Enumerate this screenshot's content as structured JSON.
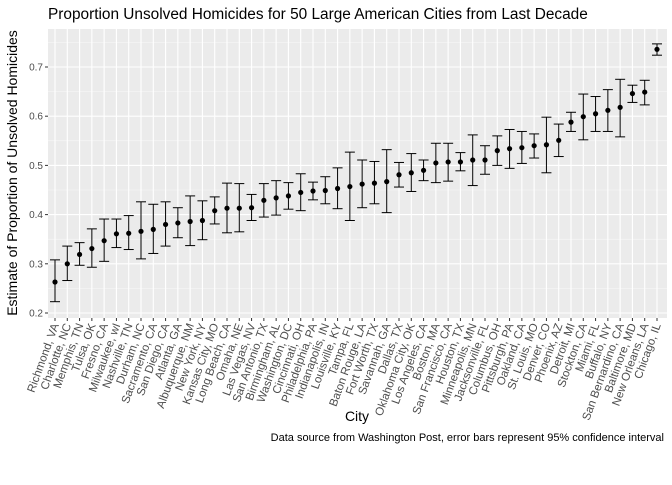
{
  "chart_data": {
    "type": "scatter",
    "title": "Proportion Unsolved Homicides for 50 Large American Cities from Last Decade",
    "xlabel": "City",
    "ylabel": "Estimate of Proportion of Unsolved Homicides",
    "caption": "Data source from Washington Post, error bars represent 95% confidence interval",
    "ylim": [
      0.2,
      0.75
    ],
    "yticks": [
      0.2,
      0.3,
      0.4,
      0.5,
      0.6,
      0.7
    ],
    "grid": true,
    "legend": "none",
    "colors": {
      "panel": "#ebebeb",
      "grid_major": "#ffffff",
      "point": "#000000",
      "text": "#4d4d4d"
    },
    "points": [
      {
        "city": "Richmond, VA",
        "estimate": 0.263,
        "low": 0.223,
        "high": 0.308
      },
      {
        "city": "Charlotte, NC",
        "estimate": 0.3,
        "low": 0.266,
        "high": 0.336
      },
      {
        "city": "Memphis, TN",
        "estimate": 0.319,
        "low": 0.297,
        "high": 0.343
      },
      {
        "city": "Tulsa, OK",
        "estimate": 0.331,
        "low": 0.293,
        "high": 0.371
      },
      {
        "city": "Fresno, CA",
        "estimate": 0.347,
        "low": 0.305,
        "high": 0.391
      },
      {
        "city": "Milwaukee, wI",
        "estimate": 0.361,
        "low": 0.333,
        "high": 0.391
      },
      {
        "city": "Nashville, TN",
        "estimate": 0.362,
        "low": 0.329,
        "high": 0.398
      },
      {
        "city": "Durham, NC",
        "estimate": 0.366,
        "low": 0.31,
        "high": 0.426
      },
      {
        "city": "Sacramento, CA",
        "estimate": 0.37,
        "low": 0.321,
        "high": 0.421
      },
      {
        "city": "San Diego, CA",
        "estimate": 0.38,
        "low": 0.336,
        "high": 0.426
      },
      {
        "city": "Atlanta, GA",
        "estimate": 0.383,
        "low": 0.353,
        "high": 0.414
      },
      {
        "city": "Albuquerque, NM",
        "estimate": 0.386,
        "low": 0.337,
        "high": 0.438
      },
      {
        "city": "New York, NY",
        "estimate": 0.388,
        "low": 0.349,
        "high": 0.428
      },
      {
        "city": "Kansas City, MO",
        "estimate": 0.408,
        "low": 0.381,
        "high": 0.436
      },
      {
        "city": "Long Beach, CA",
        "estimate": 0.413,
        "low": 0.363,
        "high": 0.464
      },
      {
        "city": "Omaha, NE",
        "estimate": 0.413,
        "low": 0.365,
        "high": 0.463
      },
      {
        "city": "Las Vegas, NV",
        "estimate": 0.414,
        "low": 0.388,
        "high": 0.441
      },
      {
        "city": "San Antonio, TX",
        "estimate": 0.429,
        "low": 0.395,
        "high": 0.463
      },
      {
        "city": "Birmingham, AL",
        "estimate": 0.434,
        "low": 0.399,
        "high": 0.469
      },
      {
        "city": "Washington, DC",
        "estimate": 0.438,
        "low": 0.411,
        "high": 0.465
      },
      {
        "city": "Cincinnati, OH",
        "estimate": 0.445,
        "low": 0.408,
        "high": 0.483
      },
      {
        "city": "Philadelphia, PA",
        "estimate": 0.448,
        "low": 0.43,
        "high": 0.466
      },
      {
        "city": "Indianapolis, IN",
        "estimate": 0.449,
        "low": 0.422,
        "high": 0.477
      },
      {
        "city": "Louisville, KY",
        "estimate": 0.453,
        "low": 0.412,
        "high": 0.495
      },
      {
        "city": "Tampa, FL",
        "estimate": 0.457,
        "low": 0.388,
        "high": 0.527
      },
      {
        "city": "Baton Rouge, LA",
        "estimate": 0.462,
        "low": 0.414,
        "high": 0.511
      },
      {
        "city": "Fort Worth, TX",
        "estimate": 0.464,
        "low": 0.422,
        "high": 0.508
      },
      {
        "city": "Savannah, GA",
        "estimate": 0.467,
        "low": 0.404,
        "high": 0.532
      },
      {
        "city": "Dallas, TX",
        "estimate": 0.481,
        "low": 0.456,
        "high": 0.506
      },
      {
        "city": "Oklahoma City, OK",
        "estimate": 0.485,
        "low": 0.447,
        "high": 0.524
      },
      {
        "city": "Los Angeles, CA",
        "estimate": 0.49,
        "low": 0.469,
        "high": 0.511
      },
      {
        "city": "Boston, MA",
        "estimate": 0.505,
        "low": 0.465,
        "high": 0.545
      },
      {
        "city": "San Francisco, CA",
        "estimate": 0.507,
        "low": 0.468,
        "high": 0.545
      },
      {
        "city": "Houston, TX",
        "estimate": 0.507,
        "low": 0.489,
        "high": 0.526
      },
      {
        "city": "Minneapolis, MN",
        "estimate": 0.511,
        "low": 0.459,
        "high": 0.562
      },
      {
        "city": "Jacksonville, FL",
        "estimate": 0.511,
        "low": 0.482,
        "high": 0.54
      },
      {
        "city": "Columbus, OH",
        "estimate": 0.53,
        "low": 0.5,
        "high": 0.56
      },
      {
        "city": "Pittsburgh, PA",
        "estimate": 0.534,
        "low": 0.494,
        "high": 0.573
      },
      {
        "city": "Oakland, CA",
        "estimate": 0.536,
        "low": 0.504,
        "high": 0.569
      },
      {
        "city": "St. Louis, MO",
        "estimate": 0.54,
        "low": 0.515,
        "high": 0.564
      },
      {
        "city": "Denver, CO",
        "estimate": 0.542,
        "low": 0.485,
        "high": 0.598
      },
      {
        "city": "Phoenix, AZ",
        "estimate": 0.551,
        "low": 0.518,
        "high": 0.584
      },
      {
        "city": "Detroit, MI",
        "estimate": 0.588,
        "low": 0.569,
        "high": 0.608
      },
      {
        "city": "Stockton, CA",
        "estimate": 0.599,
        "low": 0.552,
        "high": 0.645
      },
      {
        "city": "Miami, FL",
        "estimate": 0.605,
        "low": 0.569,
        "high": 0.64
      },
      {
        "city": "Buffalo, NY",
        "estimate": 0.612,
        "low": 0.569,
        "high": 0.654
      },
      {
        "city": "San Bernardino, CA",
        "estimate": 0.618,
        "low": 0.558,
        "high": 0.675
      },
      {
        "city": "Baltimore, MD",
        "estimate": 0.646,
        "low": 0.628,
        "high": 0.663
      },
      {
        "city": "New Orleans, LA",
        "estimate": 0.649,
        "low": 0.623,
        "high": 0.673
      },
      {
        "city": "Chicago, IL",
        "estimate": 0.736,
        "low": 0.724,
        "high": 0.747
      }
    ]
  }
}
